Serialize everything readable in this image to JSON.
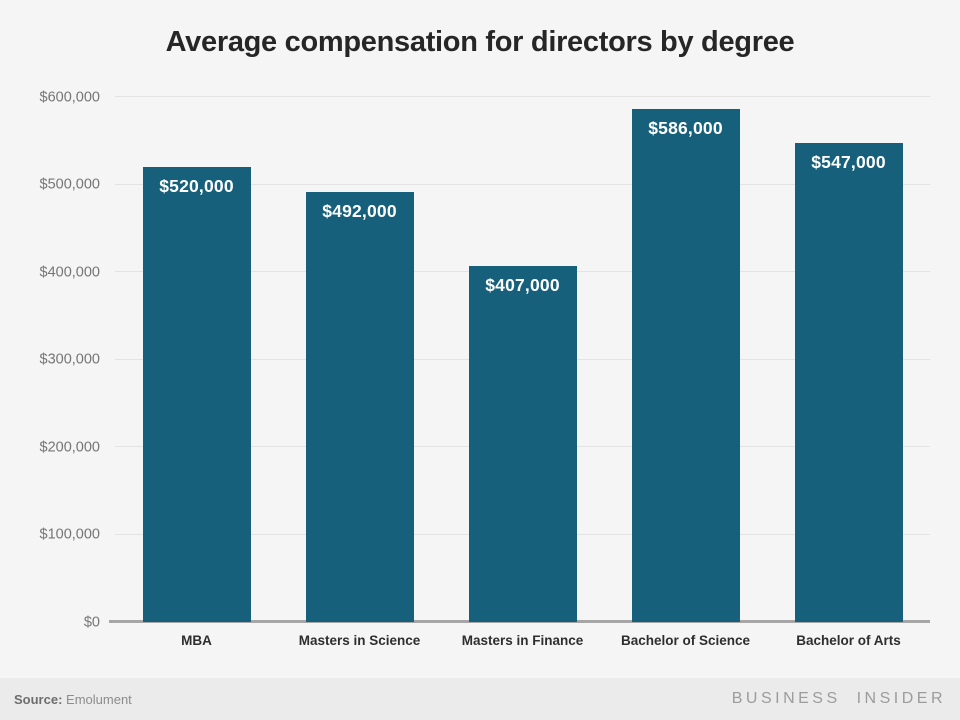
{
  "title": "Average compensation for directors by degree",
  "chart_data": {
    "type": "bar",
    "categories": [
      "MBA",
      "Masters in Science",
      "Masters in Finance",
      "Bachelor of Science",
      "Bachelor of Arts"
    ],
    "values": [
      520000,
      492000,
      407000,
      586000,
      547000
    ],
    "value_labels": [
      "$520,000",
      "$492,000",
      "$407,000",
      "$586,000",
      "$547,000"
    ],
    "title": "Average compensation for directors by degree",
    "xlabel": "",
    "ylabel": "",
    "ylim": [
      0,
      600000
    ],
    "ytick_interval": 100000,
    "ytick_labels": [
      "$0",
      "$100,000",
      "$200,000",
      "$300,000",
      "$400,000",
      "$500,000",
      "$600,000"
    ],
    "grid": "horizontal",
    "legend": "none",
    "bar_color": "#16607C",
    "value_label_position": "inside-top"
  },
  "footer": {
    "source_label": "Source:",
    "source_value": "Emolument",
    "brand": "BUSINESS INSIDER"
  },
  "colors": {
    "background": "#f5f5f5",
    "footer_background": "#ebebeb",
    "bar": "#16607C",
    "gridline": "#e3e3e3",
    "axis_line": "#a6a6a6",
    "tick_text": "#757575",
    "title_text": "#262626",
    "category_text": "#2e2e2e",
    "value_text": "#ffffff"
  }
}
